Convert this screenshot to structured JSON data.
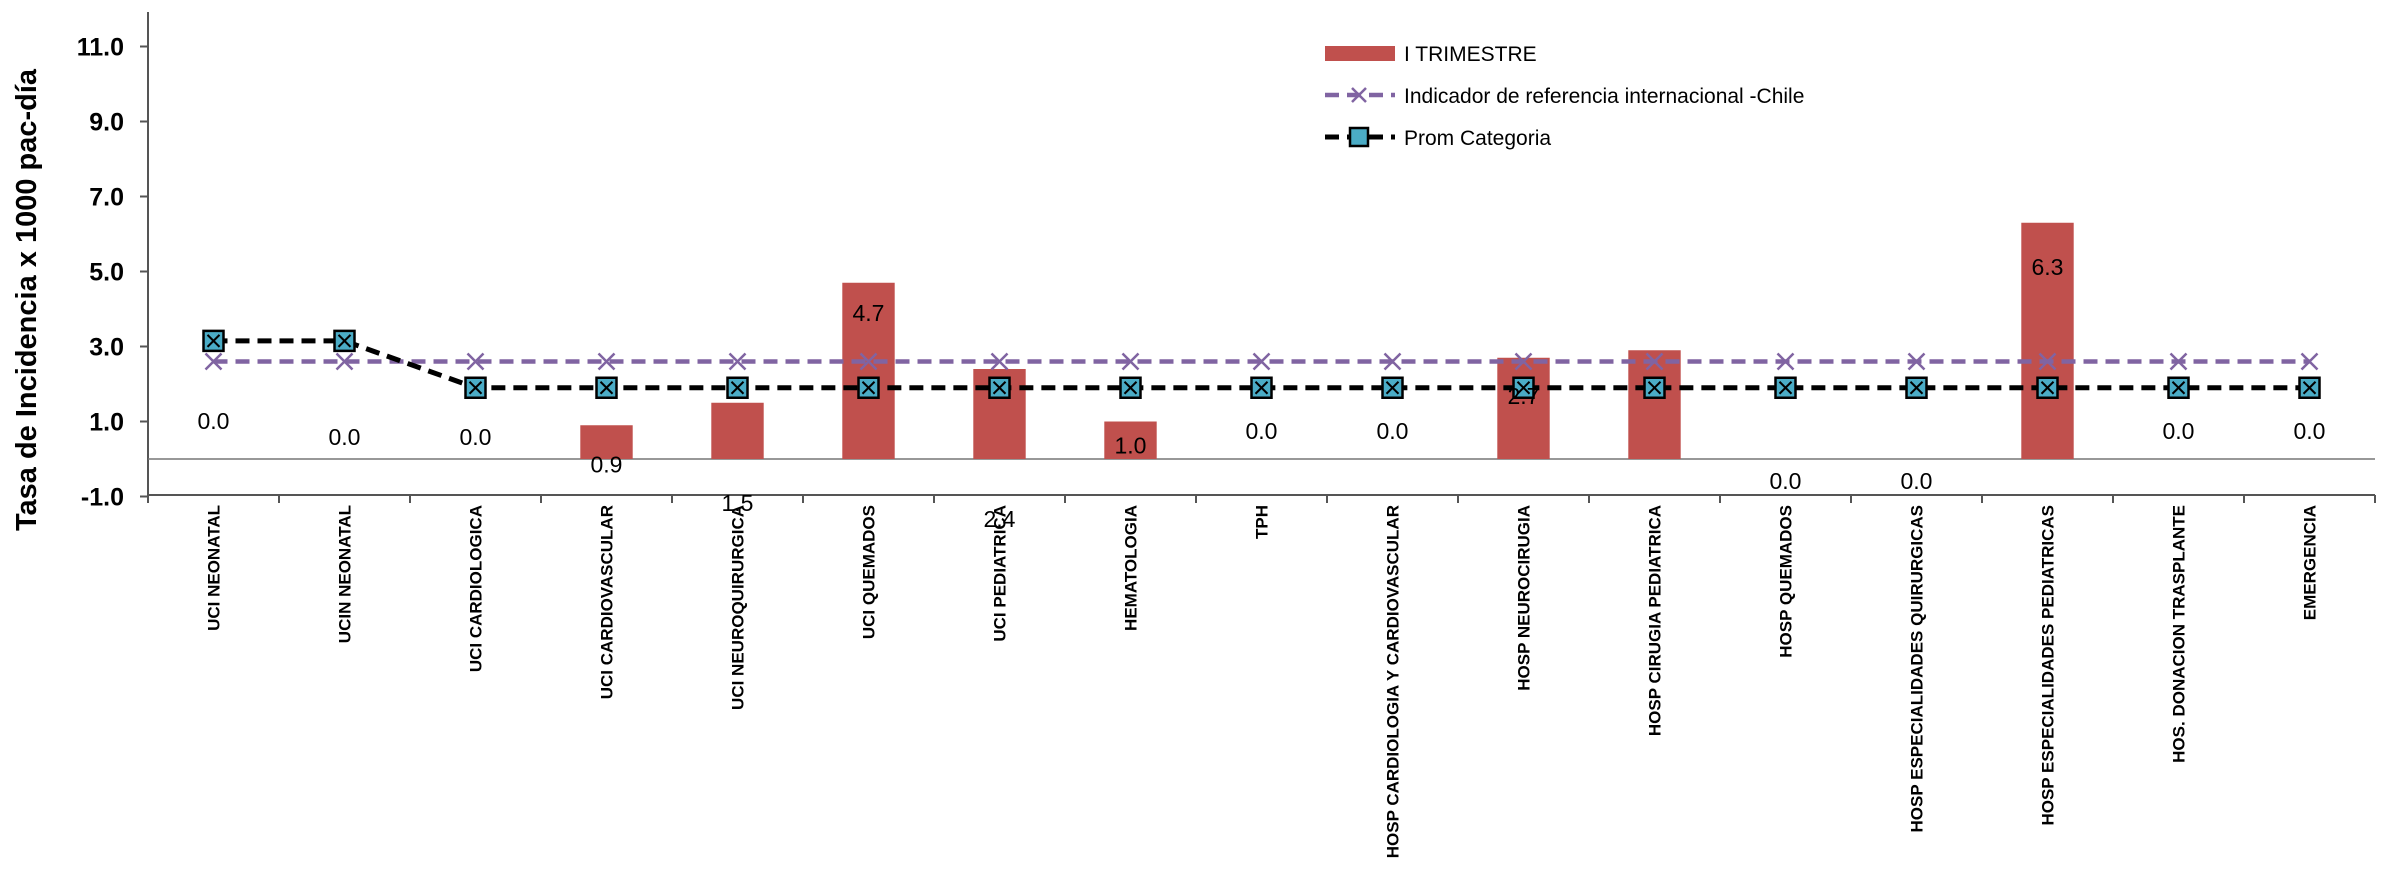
{
  "chart_data": {
    "type": "bar",
    "ylabel": "Tasa de Incidencia x 1000 pac-día",
    "xlabel": "",
    "ylim": [
      -1.0,
      12.0
    ],
    "yticks": [
      "11.0",
      "9.0",
      "7.0",
      "5.0",
      "3.0",
      "1.0",
      "-1.0"
    ],
    "categories": [
      "UCI NEONATAL",
      "UCIN  NEONATAL",
      "UCI CARDIOLOGICA",
      "UCI CARDIOVASCULAR",
      "UCI NEUROQUIRURGICA",
      "UCI QUEMADOS",
      "UCI PEDIATRICA",
      "HEMATOLOGIA",
      "TPH",
      "HOSP CARDIOLOGIA Y CARDIOVASCULAR",
      "HOSP NEUROCIRUGIA",
      "HOSP CIRUGIA PEDIATRICA",
      "HOSP  QUEMADOS",
      "HOSP ESPECIALIDADES QUIRURGICAS",
      "HOSP ESPECIALIDADES PEDIATRICAS",
      "HOS. DONACION TRASPLANTE",
      "EMERGENCIA"
    ],
    "series": [
      {
        "name": "I TRIMESTRE",
        "kind": "bar",
        "color": "#c0504d",
        "values": [
          0.0,
          0.0,
          0.0,
          0.9,
          1.5,
          4.7,
          2.4,
          1.0,
          0.0,
          0.0,
          2.7,
          2.9,
          0.0,
          0.0,
          6.3,
          0.0,
          0.0
        ],
        "labels": [
          "0.0",
          "0.0",
          "0.0",
          "0.9",
          "1.5",
          "4.7",
          "2.4",
          "1.0",
          "0.0",
          "0.0",
          "2.7",
          "",
          "0.0",
          "0.0",
          "6.3",
          "0.0",
          "0.0"
        ]
      },
      {
        "name": "Indicador de referencia internacional -Chile",
        "kind": "line",
        "color": "#8064a2",
        "values": [
          2.6,
          2.6,
          2.6,
          2.6,
          2.6,
          2.6,
          2.6,
          2.6,
          2.6,
          2.6,
          2.6,
          2.6,
          2.6,
          2.6,
          2.6,
          2.6,
          2.6
        ]
      },
      {
        "name": "Prom Categoria",
        "kind": "line",
        "color": "#000000",
        "marker_color": "#4bacc6",
        "values": [
          3.15,
          3.15,
          1.9,
          1.9,
          1.9,
          1.9,
          1.9,
          1.9,
          1.9,
          1.9,
          1.9,
          1.9,
          1.9,
          1.9,
          1.9,
          1.9,
          1.9
        ]
      }
    ],
    "legend_position": "top-center",
    "grid": false
  }
}
